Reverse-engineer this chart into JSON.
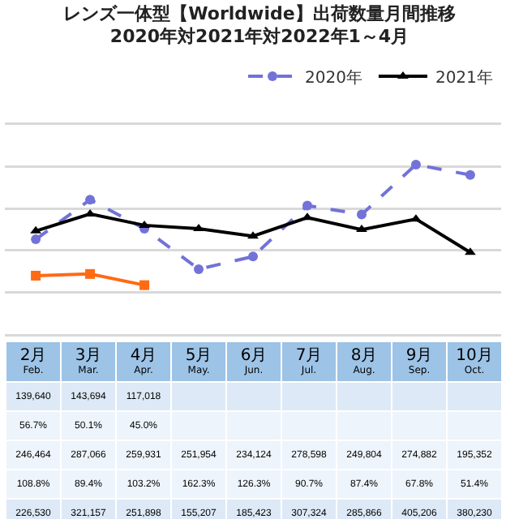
{
  "chart_data": {
    "type": "line",
    "title": "レンズ一体型【Worldwide】出荷数量月間推移",
    "subtitle": "2020年対2021年対2022年1～4月",
    "categories": [
      "2月 Feb.",
      "3月 Mar.",
      "4月 Apr.",
      "5月 May.",
      "6月 Jun.",
      "7月 Jul.",
      "8月 Aug.",
      "9月 Sep.",
      "10月 Oct."
    ],
    "series": [
      {
        "name": "2020年",
        "color": "#7272d8",
        "line_style": "dashed",
        "marker": "circle",
        "values": [
          226530,
          321157,
          251898,
          155207,
          185423,
          307324,
          285866,
          405206,
          380230
        ],
        "value_labels": [
          "226,530",
          "321,157",
          "251,898",
          "155,207",
          "185,423",
          "307,324",
          "285,866",
          "405,206",
          "380,230"
        ]
      },
      {
        "name": "2021年",
        "color": "#000000",
        "line_style": "solid",
        "marker": "triangle",
        "values": [
          246464,
          287066,
          259931,
          251954,
          234124,
          278598,
          249804,
          274882,
          195352
        ],
        "value_labels": [
          "246,464",
          "287,066",
          "259,931",
          "251,954",
          "234,124",
          "278,598",
          "249,804",
          "274,882",
          "195,352"
        ]
      },
      {
        "color": "#ff6a13",
        "line_style": "solid",
        "marker": "square",
        "values": [
          139640,
          143694,
          117018,
          null,
          null,
          null,
          null,
          null,
          null
        ],
        "value_labels": [
          "139,640",
          "143,694",
          "117,018",
          null,
          null,
          null,
          null,
          null,
          null
        ]
      }
    ],
    "annotations": [
      "56.7%",
      "50.1%",
      "45.0%",
      "108.8%",
      "89.4%",
      "103.2%",
      "162.3%",
      "126.3%",
      "90.7%",
      "87.4%",
      "67.8%",
      "51.4%"
    ],
    "ylim": [
      0,
      500000
    ],
    "yticks": [
      {
        "value": 100000,
        "label": null
      },
      {
        "value": 200000,
        "label": null
      },
      {
        "value": 300000,
        "label": null
      },
      {
        "value": 400000,
        "label": null
      }
    ],
    "grid": "y",
    "legend": "top right",
    "tick_labels": false
  }
}
